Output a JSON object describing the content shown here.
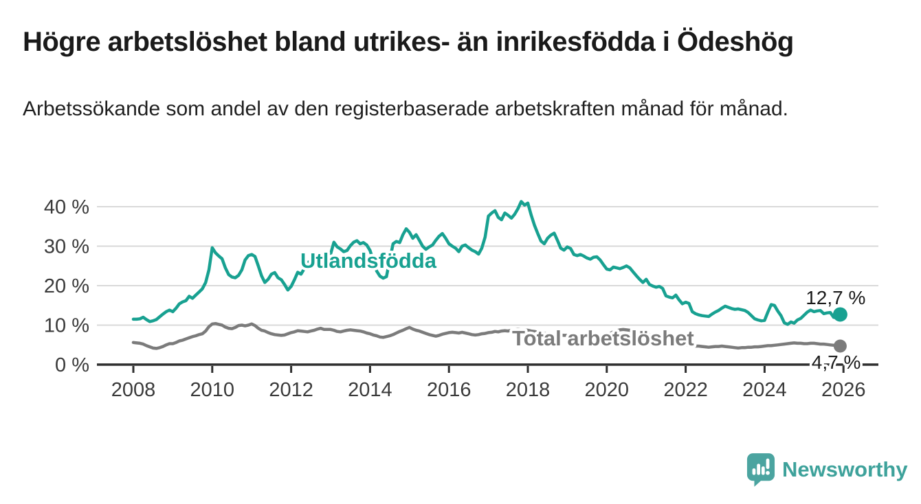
{
  "header": {
    "title": "Högre arbetslöshet bland utrikes- än inrikesfödda i Ödeshög",
    "subtitle": "Arbetssökande som andel av den registerbaserade arbetskraften månad för månad."
  },
  "branding": {
    "logo_text": "Newsworthy",
    "logo_icon": "bar-chart-speech-bubble-icon",
    "logo_color": "#4ba4a0",
    "logo_text_color": "#3ea29b"
  },
  "chart_data": {
    "type": "line",
    "title": "Högre arbetslöshet bland utrikes- än inrikesfödda i Ödeshög",
    "subtitle": "Arbetssökande som andel av den registerbaserade arbetskraften månad för månad.",
    "unit": "%",
    "grid": "horizontal",
    "legend_position": "inline-labels",
    "xlim": [
      2007.6,
      2026.9
    ],
    "ylim": [
      0,
      43
    ],
    "x_ticks": [
      2008,
      2010,
      2012,
      2014,
      2016,
      2018,
      2020,
      2022,
      2024,
      2026
    ],
    "y_ticks": [
      {
        "value": 0,
        "label": "0 %"
      },
      {
        "value": 10,
        "label": "10 %"
      },
      {
        "value": 20,
        "label": "20 %"
      },
      {
        "value": 30,
        "label": "30 %"
      },
      {
        "value": 40,
        "label": "40 %"
      }
    ],
    "start_year": 2008,
    "frequency": "monthly",
    "series": [
      {
        "name": "Utlandsfödda",
        "color": "#18a191",
        "end_label": "12,7 %",
        "end_value": 12.7,
        "values": [
          11.5,
          11.5,
          11.6,
          12.0,
          11.4,
          10.9,
          11.1,
          11.4,
          12.1,
          12.8,
          13.4,
          13.8,
          13.4,
          14.3,
          15.4,
          15.9,
          16.2,
          17.3,
          16.8,
          17.6,
          18.4,
          19.2,
          20.8,
          24.0,
          29.6,
          28.3,
          27.5,
          26.8,
          24.5,
          22.8,
          22.2,
          22.0,
          22.6,
          24.0,
          26.5,
          27.6,
          27.9,
          27.4,
          25.0,
          22.5,
          20.8,
          21.6,
          22.9,
          23.3,
          22.0,
          21.5,
          20.3,
          18.9,
          19.8,
          21.5,
          23.4,
          22.9,
          24.3,
          25.8,
          26.3,
          25.4,
          26.8,
          27.4,
          26.0,
          25.0,
          28.0,
          31.0,
          29.8,
          29.3,
          28.6,
          28.9,
          30.1,
          31.0,
          31.4,
          30.6,
          30.9,
          30.3,
          28.9,
          26.3,
          23.7,
          22.4,
          21.9,
          22.3,
          26.5,
          30.6,
          31.2,
          30.9,
          32.9,
          34.4,
          33.5,
          32.0,
          32.9,
          31.5,
          30.0,
          29.2,
          29.8,
          30.3,
          31.5,
          32.5,
          33.2,
          32.0,
          30.6,
          30.0,
          29.5,
          28.6,
          30.0,
          30.3,
          29.6,
          29.0,
          28.6,
          28.0,
          29.5,
          32.3,
          37.6,
          38.4,
          39.0,
          37.3,
          36.7,
          38.4,
          37.8,
          37.1,
          38.1,
          39.5,
          41.3,
          40.4,
          40.9,
          37.9,
          35.3,
          33.2,
          31.3,
          30.6,
          32.0,
          32.8,
          33.3,
          31.5,
          29.5,
          29.0,
          29.8,
          29.4,
          27.9,
          27.6,
          27.9,
          27.5,
          27.0,
          26.7,
          27.2,
          27.3,
          26.5,
          25.3,
          24.2,
          24.0,
          24.7,
          24.5,
          24.3,
          24.6,
          25.0,
          24.5,
          23.5,
          22.5,
          21.6,
          20.8,
          21.6,
          20.3,
          19.9,
          19.6,
          19.8,
          19.3,
          17.4,
          17.1,
          16.9,
          17.6,
          16.4,
          15.4,
          15.8,
          15.5,
          13.4,
          12.9,
          12.6,
          12.4,
          12.3,
          12.2,
          12.8,
          13.3,
          13.7,
          14.3,
          14.8,
          14.5,
          14.2,
          14.0,
          14.1,
          13.9,
          13.7,
          13.2,
          12.4,
          11.6,
          11.3,
          11.1,
          11.2,
          13.3,
          15.2,
          15.0,
          13.6,
          12.4,
          10.6,
          10.2,
          10.8,
          10.5,
          11.3,
          11.7,
          12.5,
          13.3,
          13.8,
          13.4,
          13.6,
          13.7,
          12.9,
          13.1,
          13.2,
          12.0,
          11.8,
          12.7
        ]
      },
      {
        "name": "Total arbetslöshet",
        "color": "#7b7b7b",
        "end_label": "4,7 %",
        "end_value": 4.7,
        "values": [
          5.6,
          5.5,
          5.4,
          5.2,
          4.8,
          4.5,
          4.2,
          4.1,
          4.3,
          4.6,
          5.0,
          5.3,
          5.3,
          5.6,
          6.0,
          6.2,
          6.5,
          6.8,
          7.1,
          7.3,
          7.6,
          7.8,
          8.5,
          9.6,
          10.3,
          10.4,
          10.2,
          10.0,
          9.5,
          9.2,
          9.1,
          9.4,
          9.9,
          10.0,
          9.8,
          10.0,
          10.3,
          9.9,
          9.2,
          8.7,
          8.5,
          8.1,
          7.8,
          7.6,
          7.5,
          7.4,
          7.5,
          7.8,
          8.1,
          8.3,
          8.6,
          8.5,
          8.4,
          8.3,
          8.5,
          8.7,
          9.0,
          9.2,
          8.9,
          8.9,
          8.9,
          8.7,
          8.4,
          8.3,
          8.5,
          8.7,
          8.8,
          8.7,
          8.6,
          8.5,
          8.3,
          8.0,
          7.8,
          7.5,
          7.3,
          7.0,
          6.9,
          7.1,
          7.3,
          7.6,
          8.0,
          8.4,
          8.7,
          9.1,
          9.4,
          9.0,
          8.7,
          8.5,
          8.2,
          7.9,
          7.6,
          7.4,
          7.2,
          7.4,
          7.7,
          7.9,
          8.1,
          8.2,
          8.1,
          8.0,
          8.2,
          8.0,
          7.8,
          7.6,
          7.5,
          7.6,
          7.8,
          7.9,
          8.1,
          8.2,
          8.4,
          8.3,
          8.5,
          8.6,
          8.5,
          8.7,
          8.8,
          8.9,
          8.8,
          8.8,
          8.7,
          8.5,
          8.4,
          8.2,
          8.1,
          7.9,
          7.8,
          7.7,
          7.6,
          7.5,
          7.5,
          7.4,
          7.4,
          7.3,
          7.2,
          7.2,
          7.1,
          7.1,
          7.2,
          7.2,
          7.3,
          7.3,
          7.4,
          7.5,
          7.7,
          7.9,
          8.3,
          8.6,
          8.8,
          8.9,
          8.8,
          8.7,
          8.5,
          8.3,
          8.1,
          7.9,
          7.7,
          7.5,
          7.2,
          7.0,
          6.7,
          6.5,
          6.2,
          6.0,
          5.8,
          5.6,
          5.4,
          5.2,
          5.0,
          4.9,
          4.8,
          4.7,
          4.7,
          4.6,
          4.5,
          4.4,
          4.5,
          4.6,
          4.6,
          4.7,
          4.6,
          4.5,
          4.4,
          4.3,
          4.2,
          4.3,
          4.3,
          4.4,
          4.4,
          4.5,
          4.5,
          4.6,
          4.7,
          4.8,
          4.8,
          4.9,
          5.0,
          5.1,
          5.2,
          5.3,
          5.4,
          5.5,
          5.4,
          5.4,
          5.3,
          5.3,
          5.4,
          5.4,
          5.3,
          5.2,
          5.2,
          5.1,
          5.0,
          4.9,
          4.8,
          4.7
        ]
      }
    ],
    "colors": {
      "gridline": "#d9d9d9",
      "axis": "#2e2e2e",
      "tick_label": "#3a3a3a",
      "end_label": "#1a1a1a"
    }
  }
}
